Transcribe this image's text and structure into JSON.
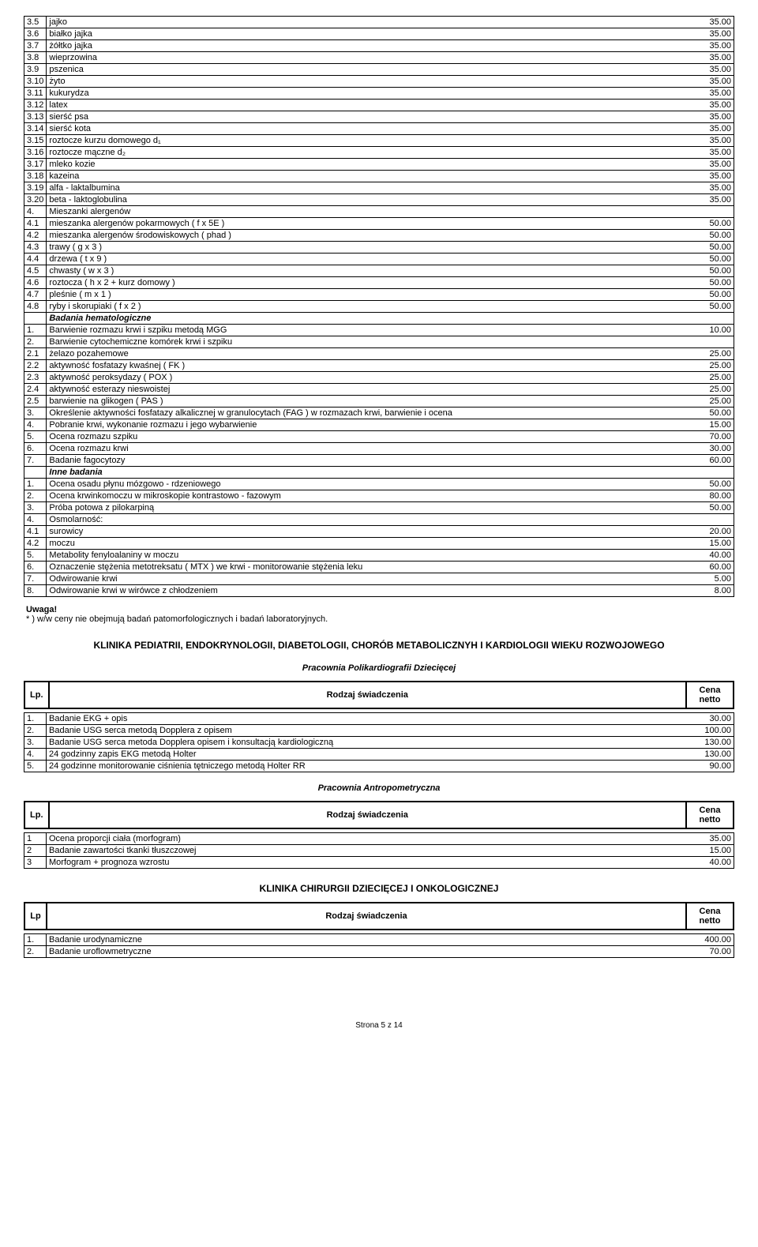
{
  "colors": {
    "text": "#000000",
    "bg": "#ffffff",
    "border": "#000000"
  },
  "typography": {
    "font_family": "Arial",
    "base_size": 11
  },
  "table1": {
    "rows": [
      {
        "n": "3.5",
        "d": "jajko",
        "p": "35.00"
      },
      {
        "n": "3.6",
        "d": "białko jajka",
        "p": "35.00"
      },
      {
        "n": "3.7",
        "d": "żółtko jajka",
        "p": "35.00"
      },
      {
        "n": "3.8",
        "d": "wieprzowina",
        "p": "35.00"
      },
      {
        "n": "3.9",
        "d": "pszenica",
        "p": "35.00"
      },
      {
        "n": "3.10",
        "d": "żyto",
        "p": "35.00"
      },
      {
        "n": "3.11",
        "d": "kukurydza",
        "p": "35.00"
      },
      {
        "n": "3.12",
        "d": "latex",
        "p": "35.00"
      },
      {
        "n": "3.13",
        "d": "sierść psa",
        "p": "35.00"
      },
      {
        "n": "3.14",
        "d": "sierść kota",
        "p": "35.00"
      },
      {
        "n": "3.15",
        "d": "roztocze kurzu domowego d₁",
        "p": "35.00"
      },
      {
        "n": "3.16",
        "d": "roztocze mączne d₂",
        "p": "35.00"
      },
      {
        "n": "3.17",
        "d": "mleko kozie",
        "p": "35.00"
      },
      {
        "n": "3.18",
        "d": "kazeina",
        "p": "35.00"
      },
      {
        "n": "3.19",
        "d": "alfa - laktalbumina",
        "p": "35.00"
      },
      {
        "n": "3.20",
        "d": "beta - laktoglobulina",
        "p": "35.00"
      },
      {
        "n": "4.",
        "d": "Mieszanki alergenów",
        "p": ""
      },
      {
        "n": "4.1",
        "d": "mieszanka alergenów pokarmowych ( f x 5E )",
        "p": "50.00"
      },
      {
        "n": "4.2",
        "d": "mieszanka alergenów środowiskowych ( phad )",
        "p": "50.00"
      },
      {
        "n": "4.3",
        "d": "trawy ( g x 3 )",
        "p": "50.00"
      },
      {
        "n": "4.4",
        "d": "drzewa ( t x 9 )",
        "p": "50.00"
      },
      {
        "n": "4.5",
        "d": "chwasty ( w x 3 )",
        "p": "50.00"
      },
      {
        "n": "4.6",
        "d": "roztocza ( h x 2 + kurz domowy )",
        "p": "50.00"
      },
      {
        "n": "4.7",
        "d": "pleśnie ( m x 1 )",
        "p": "50.00"
      },
      {
        "n": "4.8",
        "d": "ryby i skorupiaki ( f x 2 )",
        "p": "50.00"
      },
      {
        "n": "",
        "d": "Badania hematologiczne",
        "p": "",
        "section": true
      },
      {
        "n": "1.",
        "d": "Barwienie rozmazu krwi i szpiku metodą MGG",
        "p": "10.00"
      },
      {
        "n": "2.",
        "d": "Barwienie cytochemiczne komórek krwi i szpiku",
        "p": ""
      },
      {
        "n": "2.1",
        "d": "żelazo pozahemowe",
        "p": "25.00"
      },
      {
        "n": "2.2",
        "d": "aktywność fosfatazy kwaśnej ( FK )",
        "p": "25.00"
      },
      {
        "n": "2.3",
        "d": "aktywność peroksydazy ( POX )",
        "p": "25.00"
      },
      {
        "n": "2.4",
        "d": "aktywność esterazy nieswoistej",
        "p": "25.00"
      },
      {
        "n": "2.5",
        "d": "barwienie na glikogen ( PAS )",
        "p": "25.00"
      },
      {
        "n": "3.",
        "d": "Określenie aktywności fosfatazy alkalicznej w granulocytach (FAG ) w rozmazach krwi, barwienie i ocena",
        "p": "50.00"
      },
      {
        "n": "4.",
        "d": "Pobranie krwi, wykonanie rozmazu i jego wybarwienie",
        "p": "15.00"
      },
      {
        "n": "5.",
        "d": "Ocena rozmazu szpiku",
        "p": "70.00"
      },
      {
        "n": "6.",
        "d": "Ocena rozmazu krwi",
        "p": "30.00"
      },
      {
        "n": "7.",
        "d": "Badanie fagocytozy",
        "p": "60.00"
      },
      {
        "n": "",
        "d": "Inne badania",
        "p": "",
        "section": true
      },
      {
        "n": "1.",
        "d": "Ocena osadu płynu mózgowo - rdzeniowego",
        "p": "50.00"
      },
      {
        "n": "2.",
        "d": "Ocena krwinkomoczu w mikroskopie kontrastowo - fazowym",
        "p": "80.00"
      },
      {
        "n": "3.",
        "d": "Próba potowa z pilokarpiną",
        "p": "50.00"
      },
      {
        "n": "4.",
        "d": "Osmolarność:",
        "p": ""
      },
      {
        "n": "4.1",
        "d": "surowicy",
        "p": "20.00"
      },
      {
        "n": "4.2",
        "d": "moczu",
        "p": "15.00"
      },
      {
        "n": "5.",
        "d": "Metabolity fenyloalaniny w moczu",
        "p": "40.00"
      },
      {
        "n": "6.",
        "d": "Oznaczenie stężenia metotreksatu ( MTX ) we krwi - monitorowanie stężenia leku",
        "p": "60.00"
      },
      {
        "n": "7.",
        "d": "Odwirowanie krwi",
        "p": "5.00"
      },
      {
        "n": "8.",
        "d": "Odwirowanie krwi w wirówce z chłodzeniem",
        "p": "8.00"
      }
    ]
  },
  "note": {
    "title": "Uwaga!",
    "text": "* ) w/w ceny nie obejmują badań patomorfologicznych i badań laboratoryjnych."
  },
  "section2": {
    "title": "KLINIKA PEDIATRII, ENDOKRYNOLOGII, DIABETOLOGII, CHORÓB METABOLICZNYH I KARDIOLOGII WIEKU ROZWOJOWEGO",
    "sub1": "Pracownia Polikardiografii Dziecięcej",
    "headers": {
      "lp": "Lp.",
      "desc": "Rodzaj świadczenia",
      "cena": "Cena netto"
    },
    "rows1": [
      {
        "n": "1.",
        "d": "Badanie EKG + opis",
        "p": "30.00"
      },
      {
        "n": "2.",
        "d": "Badanie USG serca metodą Dopplera z opisem",
        "p": "100.00"
      },
      {
        "n": "3.",
        "d": "Badanie USG serca metoda Dopplera opisem i konsultacją kardiologiczną",
        "p": "130.00"
      },
      {
        "n": "4.",
        "d": "24 godzinny zapis EKG metodą Holter",
        "p": "130.00"
      },
      {
        "n": "5.",
        "d": "24 godzinne monitorowanie ciśnienia tętniczego metodą Holter RR",
        "p": "90.00"
      }
    ],
    "sub2": "Pracownia Antropometryczna",
    "rows2": [
      {
        "n": "1",
        "d": "Ocena proporcji ciała (morfogram)",
        "p": "35.00"
      },
      {
        "n": "2",
        "d": "Badanie zawartości tkanki tłuszczowej",
        "p": "15.00"
      },
      {
        "n": "3",
        "d": "Morfogram + prognoza wzrostu",
        "p": "40.00"
      }
    ]
  },
  "section3": {
    "title": "KLINIKA CHIRURGII DZIECIĘCEJ I ONKOLOGICZNEJ",
    "headers": {
      "lp": "Lp",
      "desc": "Rodzaj świadczenia",
      "cena": "Cena netto"
    },
    "rows": [
      {
        "n": "1.",
        "d": "Badanie urodynamiczne",
        "p": "400.00"
      },
      {
        "n": "2.",
        "d": "Badanie uroflowmetryczne",
        "p": "70.00"
      }
    ]
  },
  "footer": "Strona 5 z 14"
}
